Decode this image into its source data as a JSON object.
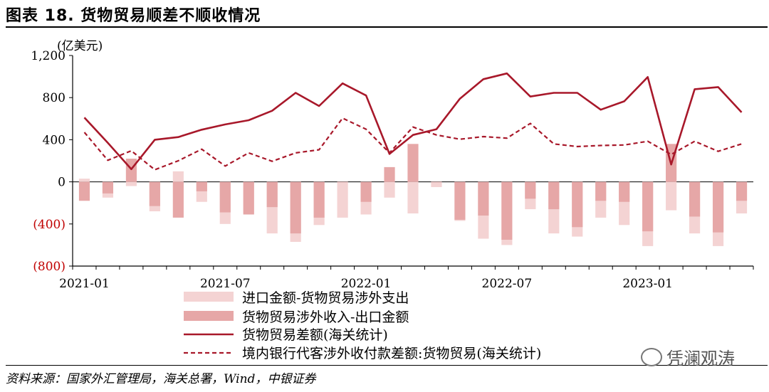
{
  "title": "图表 18. 货物贸易顺差不顺收情况",
  "source": "资料来源：国家外汇管理局，海关总署，Wind，中银证券",
  "watermark": "凭澜观涛",
  "colors": {
    "imports_bar": "#f4d3d3",
    "exports_bar": "#e6a7a7",
    "trade_balance_line": "#a8182a",
    "settlement_line": "#a8182a",
    "negative_tick": "#c00000"
  },
  "chart_data": {
    "type": "bar+line",
    "unit_label": "(亿美元)",
    "ylim": [
      -800,
      1200
    ],
    "yticks": [
      {
        "value": 1200,
        "label": "1,200"
      },
      {
        "value": 800,
        "label": "800"
      },
      {
        "value": 400,
        "label": "400"
      },
      {
        "value": 0,
        "label": "0"
      },
      {
        "value": -400,
        "label": "(400)"
      },
      {
        "value": -800,
        "label": "(800)"
      }
    ],
    "x": [
      "2021-01",
      "2021-02",
      "2021-03",
      "2021-04",
      "2021-05",
      "2021-06",
      "2021-07",
      "2021-08",
      "2021-09",
      "2021-10",
      "2021-11",
      "2021-12",
      "2022-01",
      "2022-02",
      "2022-03",
      "2022-04",
      "2022-05",
      "2022-06",
      "2022-07",
      "2022-08",
      "2022-09",
      "2022-10",
      "2022-11",
      "2022-12",
      "2023-01",
      "2023-02",
      "2023-03",
      "2023-04",
      "2023-05"
    ],
    "xtick_labels": [
      {
        "index": 0,
        "label": "2021-01"
      },
      {
        "index": 6,
        "label": "2021-07"
      },
      {
        "index": 12,
        "label": "2022-01"
      },
      {
        "index": 18,
        "label": "2022-07"
      },
      {
        "index": 24,
        "label": "2023-01"
      }
    ],
    "series": [
      {
        "name": "进口金额-货物贸易涉外支出",
        "kind": "bar",
        "values": [
          30,
          -150,
          -40,
          -280,
          100,
          -190,
          -400,
          -300,
          -490,
          -570,
          -410,
          -340,
          -310,
          -150,
          -300,
          -50,
          -370,
          -540,
          -600,
          -260,
          -490,
          -520,
          -340,
          -410,
          -610,
          -270,
          -490,
          -610,
          -300
        ]
      },
      {
        "name": "货物贸易涉外收入-出口金额",
        "kind": "bar",
        "values": [
          -180,
          -110,
          220,
          -230,
          -340,
          -90,
          -290,
          -310,
          -240,
          -490,
          -340,
          0,
          -190,
          140,
          360,
          0,
          -360,
          -320,
          -550,
          -160,
          -260,
          -430,
          -180,
          -190,
          -470,
          360,
          -330,
          -480,
          -180
        ]
      },
      {
        "name": "货物贸易差额(海关统计)",
        "kind": "line",
        "style": "solid",
        "values": [
          610,
          370,
          120,
          400,
          425,
          495,
          545,
          585,
          675,
          845,
          720,
          935,
          820,
          265,
          445,
          500,
          790,
          975,
          1030,
          810,
          845,
          845,
          685,
          765,
          995,
          165,
          880,
          900,
          660
        ]
      },
      {
        "name": "境内银行代客涉外收付款差额:货物贸易(海关统计)",
        "kind": "line",
        "style": "dashed",
        "values": [
          470,
          205,
          295,
          115,
          200,
          310,
          150,
          275,
          195,
          275,
          305,
          605,
          500,
          275,
          520,
          445,
          405,
          430,
          415,
          555,
          360,
          335,
          345,
          350,
          385,
          260,
          385,
          290,
          360
        ]
      }
    ],
    "legend_position": "bottom"
  }
}
